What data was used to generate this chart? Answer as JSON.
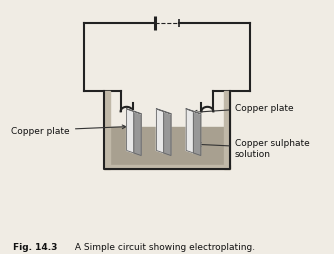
{
  "background_color": "#f0ece4",
  "circuit_color": "#222222",
  "beaker_fill": "#c0b8a8",
  "solution_fill": "#a8a090",
  "plate_fill_light": "#e8e8e8",
  "plate_fill_mid": "#c8c8c8",
  "plate_fill_dark": "#989898",
  "label_copper_plate_left": "Copper plate",
  "label_copper_plate_right": "Copper plate",
  "label_solution": "Copper sulphate\nsolution",
  "title_bold": "Fig. 14.3",
  "title_normal": " A Simple circuit showing electroplating."
}
